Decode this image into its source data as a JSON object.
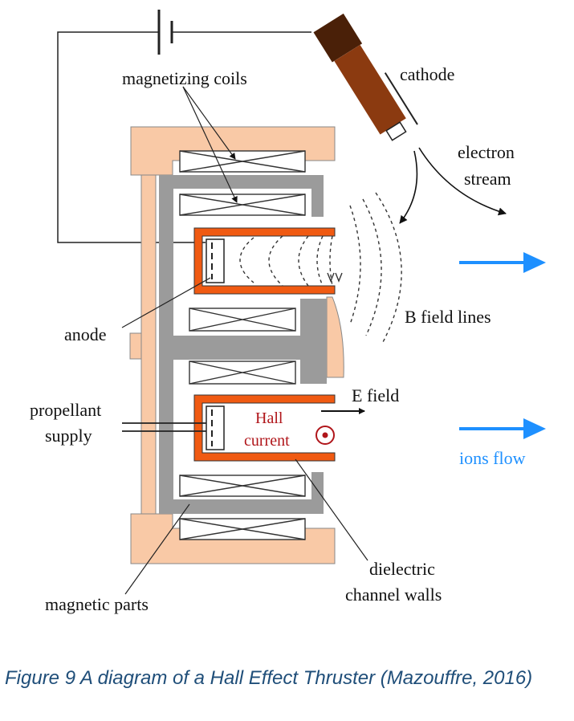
{
  "labels": {
    "magnetizing_coils": "magnetizing coils",
    "cathode": "cathode",
    "electron_stream_1": "electron",
    "electron_stream_2": "stream",
    "b_field_lines": "B field lines",
    "anode": "anode",
    "e_field": "E field",
    "propellant_supply_1": "propellant",
    "propellant_supply_2": "supply",
    "hall_current_1": "Hall",
    "hall_current_2": "current",
    "ions_flow": "ions flow",
    "dielectric_channel_walls_1": "dielectric",
    "dielectric_channel_walls_2": "channel walls",
    "magnetic_parts": "magnetic parts"
  },
  "caption": "Figure 9 A diagram of a Hall Effect Thruster (Mazouffre, 2016)",
  "colors": {
    "outer_body": "#f9c9a6",
    "magnetic_parts": "#9b9b9b",
    "channel_walls": "#f05a12",
    "cathode_body": "#8b3a10",
    "cathode_cap": "#4a2008",
    "ions_arrow": "#1e90ff",
    "hall_text": "#b0151a",
    "caption_text": "#1f4e79"
  },
  "icons": {
    "hall_current_direction": "out-of-page-dot-symbol"
  }
}
